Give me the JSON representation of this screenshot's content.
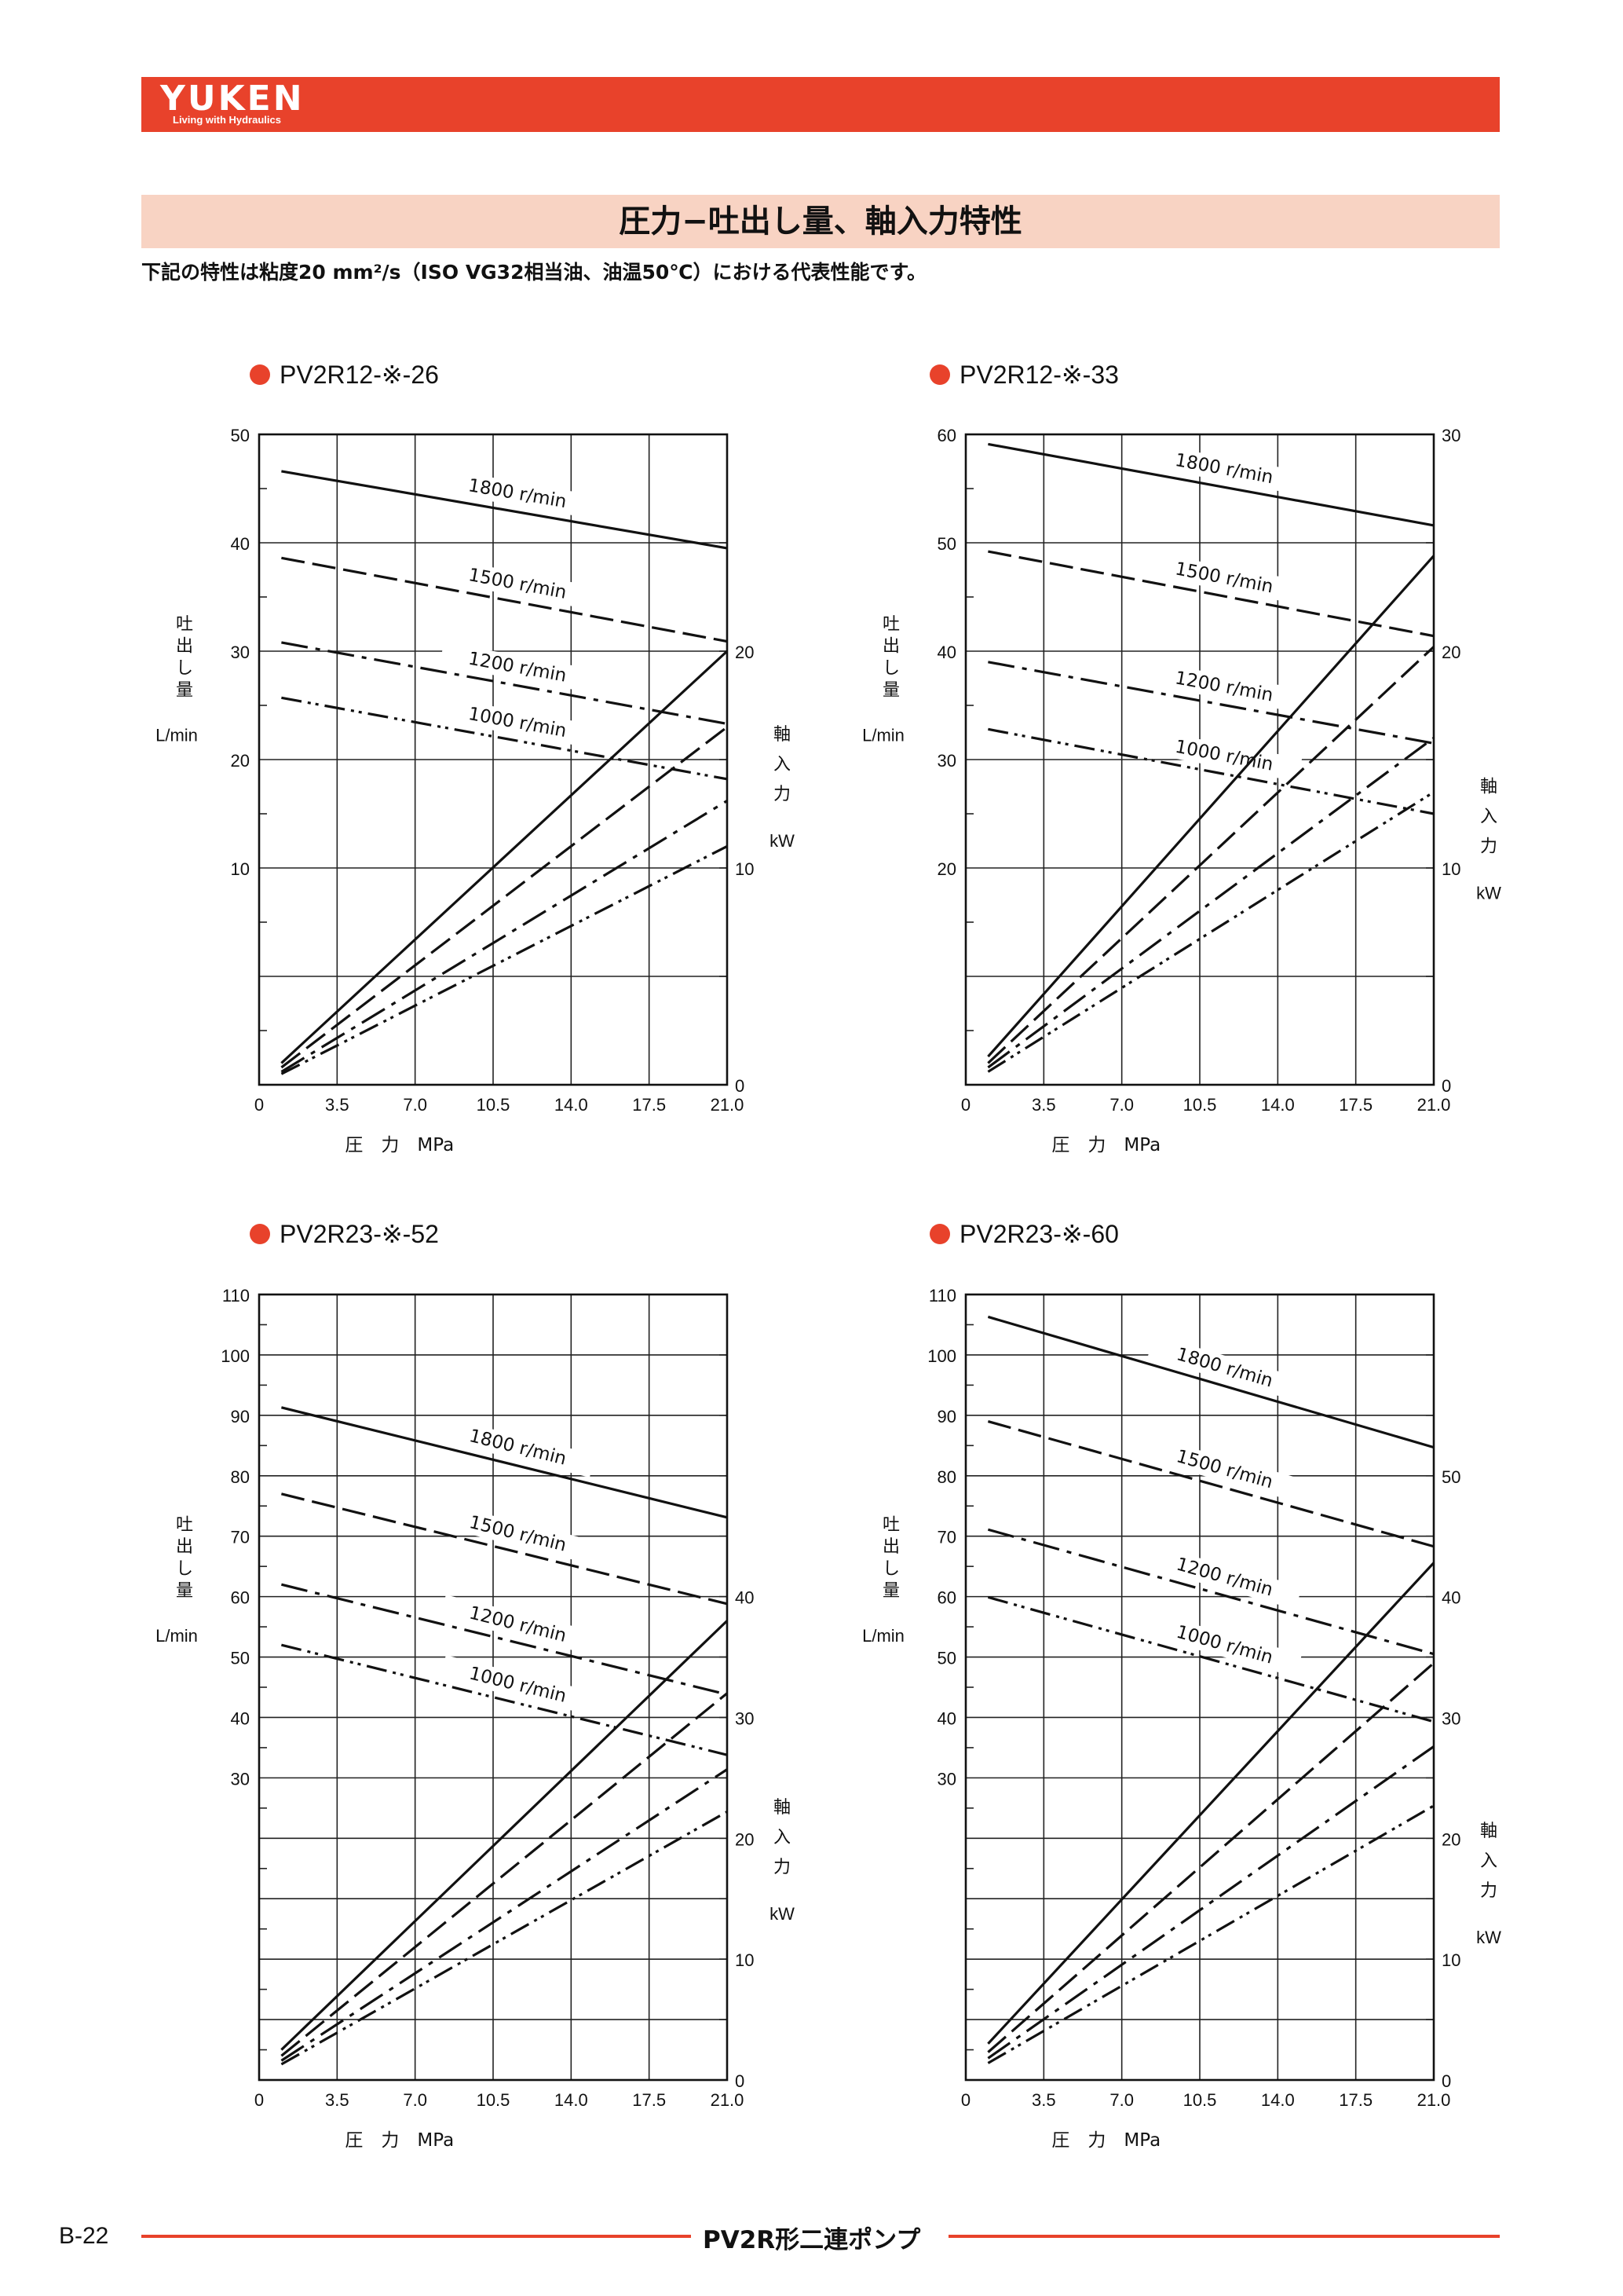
{
  "header": {
    "brand": "YUKEN",
    "tagline": "Living with Hydraulics",
    "accent": "#e8422b"
  },
  "page_title": "圧力−吐出し量、軸入力特性",
  "intro": "下記の特性は粘度20 mm²/s（ISO VG32相当油、油温50℃）における代表性能です。",
  "footer": {
    "page_number": "B-22",
    "product_name": "PV2R形二連ポンプ"
  },
  "chart_data": [
    {
      "type": "line",
      "title": "PV2R12-※-26",
      "xlabel": "圧　力　MPa",
      "x_ticks": [
        "0",
        "3.5",
        "7.0",
        "10.5",
        "14.0",
        "17.5",
        "21.0"
      ],
      "xlim": [
        0,
        21
      ],
      "y_left": {
        "label": [
          "吐",
          "出",
          "し",
          "量"
        ],
        "unit": "L/min",
        "range": [
          -10,
          50
        ],
        "ticks": [
          10,
          20,
          30,
          40,
          50
        ]
      },
      "y_right": {
        "label": [
          "軸",
          "入",
          "力"
        ],
        "unit": "kW",
        "range": [
          0,
          30
        ],
        "ticks": [
          0,
          10,
          20
        ]
      },
      "flow_series": [
        {
          "name": "1800 r/min",
          "x": [
            1,
            21
          ],
          "y": [
            46.6,
            39.5
          ]
        },
        {
          "name": "1500 r/min",
          "x": [
            1,
            21
          ],
          "y": [
            38.6,
            30.9
          ]
        },
        {
          "name": "1200 r/min",
          "x": [
            1,
            21
          ],
          "y": [
            30.8,
            23.3
          ]
        },
        {
          "name": "1000 r/min",
          "x": [
            1,
            21
          ],
          "y": [
            25.7,
            18.2
          ]
        }
      ],
      "power_series": [
        {
          "x": [
            1,
            21
          ],
          "y": [
            1.0,
            20.0
          ]
        },
        {
          "x": [
            1,
            21
          ],
          "y": [
            0.8,
            16.5
          ]
        },
        {
          "x": [
            1,
            21
          ],
          "y": [
            0.6,
            13.1
          ]
        },
        {
          "x": [
            1,
            21
          ],
          "y": [
            0.5,
            11.0
          ]
        }
      ]
    },
    {
      "type": "line",
      "title": "PV2R12-※-33",
      "xlabel": "圧　力　MPa",
      "x_ticks": [
        "0",
        "3.5",
        "7.0",
        "10.5",
        "14.0",
        "17.5",
        "21.0"
      ],
      "xlim": [
        0,
        21
      ],
      "y_left": {
        "label": [
          "吐",
          "出",
          "し",
          "量"
        ],
        "unit": "L/min",
        "range": [
          0,
          60
        ],
        "ticks": [
          20,
          30,
          40,
          50,
          60
        ]
      },
      "y_right": {
        "label": [
          "軸",
          "入",
          "力"
        ],
        "unit": "kW",
        "range": [
          0,
          30
        ],
        "ticks": [
          0,
          10,
          20,
          30
        ]
      },
      "flow_series": [
        {
          "name": "1800 r/min",
          "x": [
            1,
            21
          ],
          "y": [
            59.1,
            51.6
          ]
        },
        {
          "name": "1500 r/min",
          "x": [
            1,
            21
          ],
          "y": [
            49.2,
            41.4
          ]
        },
        {
          "name": "1200 r/min",
          "x": [
            1,
            21
          ],
          "y": [
            39.0,
            31.5
          ]
        },
        {
          "name": "1000 r/min",
          "x": [
            1,
            21
          ],
          "y": [
            32.8,
            25.0
          ]
        }
      ],
      "power_series": [
        {
          "x": [
            1,
            21
          ],
          "y": [
            1.3,
            24.4
          ]
        },
        {
          "x": [
            1,
            21
          ],
          "y": [
            1.0,
            20.2
          ]
        },
        {
          "x": [
            1,
            21
          ],
          "y": [
            0.8,
            16.0
          ]
        },
        {
          "x": [
            1,
            21
          ],
          "y": [
            0.6,
            13.5
          ]
        }
      ]
    },
    {
      "type": "line",
      "title": "PV2R23-※-52",
      "xlabel": "圧　力　MPa",
      "x_ticks": [
        "0",
        "3.5",
        "7.0",
        "10.5",
        "14.0",
        "17.5",
        "21.0"
      ],
      "xlim": [
        0,
        21
      ],
      "y_left": {
        "label": [
          "吐",
          "出",
          "し",
          "量"
        ],
        "unit": "L/min",
        "range": [
          -20,
          110
        ],
        "ticks": [
          30,
          40,
          50,
          60,
          70,
          80,
          90,
          100,
          110
        ]
      },
      "y_right": {
        "label": [
          "軸",
          "入",
          "力"
        ],
        "unit": "kW",
        "range": [
          0,
          65
        ],
        "ticks": [
          0,
          10,
          20,
          30,
          40
        ]
      },
      "flow_series": [
        {
          "name": "1800 r/min",
          "x": [
            1,
            21
          ],
          "y": [
            91.3,
            73.1
          ]
        },
        {
          "name": "1500 r/min",
          "x": [
            1,
            21
          ],
          "y": [
            77.0,
            58.8
          ]
        },
        {
          "name": "1200 r/min",
          "x": [
            1,
            21
          ],
          "y": [
            62.0,
            43.8
          ]
        },
        {
          "name": "1000 r/min",
          "x": [
            1,
            21
          ],
          "y": [
            52.0,
            33.8
          ]
        }
      ],
      "power_series": [
        {
          "x": [
            1,
            21
          ],
          "y": [
            2.5,
            38.0
          ]
        },
        {
          "x": [
            1,
            21
          ],
          "y": [
            2.0,
            32.0
          ]
        },
        {
          "x": [
            1,
            21
          ],
          "y": [
            1.6,
            25.7
          ]
        },
        {
          "x": [
            1,
            21
          ],
          "y": [
            1.3,
            22.2
          ]
        }
      ]
    },
    {
      "type": "line",
      "title": "PV2R23-※-60",
      "xlabel": "圧　力　MPa",
      "x_ticks": [
        "0",
        "3.5",
        "7.0",
        "10.5",
        "14.0",
        "17.5",
        "21.0"
      ],
      "xlim": [
        0,
        21
      ],
      "y_left": {
        "label": [
          "吐",
          "出",
          "し",
          "量"
        ],
        "unit": "L/min",
        "range": [
          -20,
          110
        ],
        "ticks": [
          30,
          40,
          50,
          60,
          70,
          80,
          90,
          100,
          110
        ]
      },
      "y_right": {
        "label": [
          "軸",
          "入",
          "力"
        ],
        "unit": "kW",
        "range": [
          0,
          65
        ],
        "ticks": [
          0,
          10,
          20,
          30,
          40,
          50
        ]
      },
      "flow_series": [
        {
          "name": "1800 r/min",
          "x": [
            1,
            21
          ],
          "y": [
            106.3,
            84.7
          ]
        },
        {
          "name": "1500 r/min",
          "x": [
            1,
            21
          ],
          "y": [
            89.0,
            68.3
          ]
        },
        {
          "name": "1200 r/min",
          "x": [
            1,
            21
          ],
          "y": [
            71.1,
            50.5
          ]
        },
        {
          "name": "1000 r/min",
          "x": [
            1,
            21
          ],
          "y": [
            59.9,
            39.3
          ]
        }
      ],
      "power_series": [
        {
          "x": [
            1,
            21
          ],
          "y": [
            3.0,
            42.8
          ]
        },
        {
          "x": [
            1,
            21
          ],
          "y": [
            2.3,
            34.5
          ]
        },
        {
          "x": [
            1,
            21
          ],
          "y": [
            1.8,
            27.6
          ]
        },
        {
          "x": [
            1,
            21
          ],
          "y": [
            1.4,
            22.7
          ]
        }
      ]
    }
  ]
}
